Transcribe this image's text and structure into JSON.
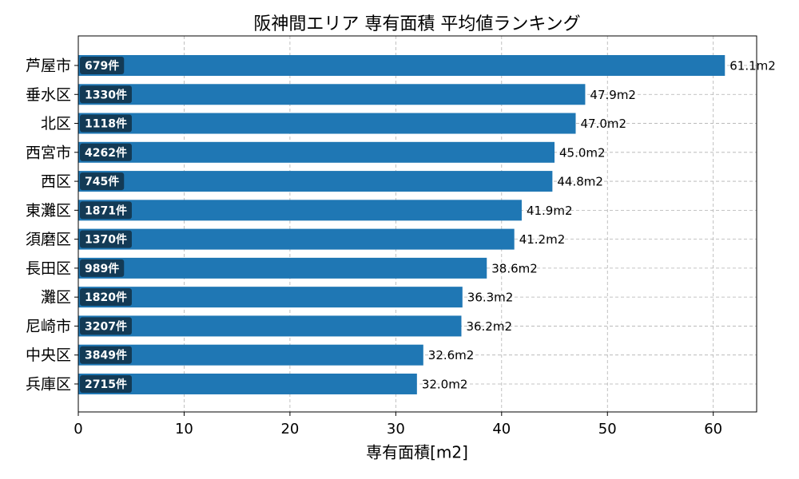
{
  "chart_data": {
    "type": "barh",
    "title": "阪神間エリア 専有面積 平均値ランキング",
    "xlabel": "専有面積[m2]",
    "categories": [
      "芦屋市",
      "垂水区",
      "北区",
      "西宮市",
      "西区",
      "東灘区",
      "須磨区",
      "長田区",
      "灘区",
      "尼崎市",
      "中央区",
      "兵庫区"
    ],
    "values": [
      61.1,
      47.9,
      47.0,
      45.0,
      44.8,
      41.9,
      41.2,
      38.6,
      36.3,
      36.2,
      32.6,
      32.0
    ],
    "value_labels": [
      "61.1m2",
      "47.9m2",
      "47.0m2",
      "45.0m2",
      "44.8m2",
      "41.9m2",
      "41.2m2",
      "38.6m2",
      "36.3m2",
      "36.2m2",
      "32.6m2",
      "32.0m2"
    ],
    "annotations": [
      "679件",
      "1330件",
      "1118件",
      "4262件",
      "745件",
      "1871件",
      "1370件",
      "989件",
      "1820件",
      "3207件",
      "3849件",
      "2715件"
    ],
    "color": "#1f77b4",
    "xlim": [
      0,
      64.1
    ],
    "xticks": [
      0,
      10,
      20,
      30,
      40,
      50,
      60
    ],
    "grid": true
  }
}
